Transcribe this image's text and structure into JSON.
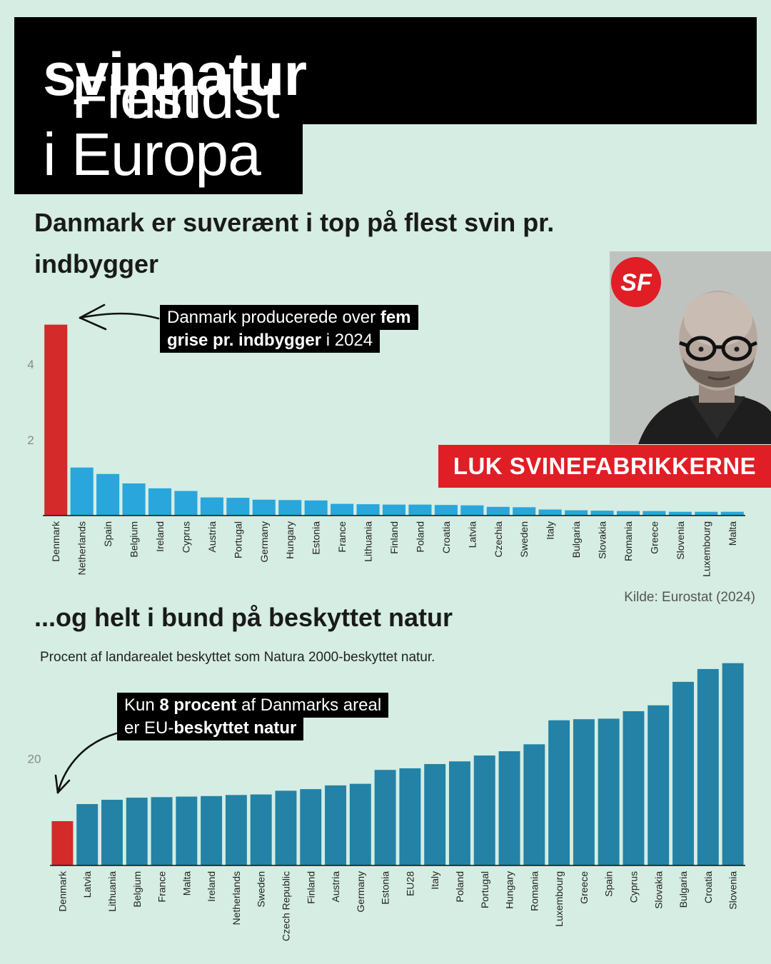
{
  "title": {
    "line1_part1": "Flest ",
    "line1_bold1": "svin",
    "line1_part2": " - mindst ",
    "line1_bold2": "natur",
    "line2": "i Europa"
  },
  "heading1": "Danmark er suverænt i top på flest svin pr. indbygger",
  "heading2": "...og helt i bund på beskyttet natur",
  "source": "Kilde: Eurostat (2024)",
  "annotation1": {
    "part1": "Danmark producerede over ",
    "bold1": "fem",
    "bold2": "grise pr. indbygger",
    "part2": " i 2024"
  },
  "annotation2": {
    "part1": "Kun ",
    "bold1": "8 procent",
    "part2": " af Danmarks areal",
    "part3": "er EU-",
    "bold2": "beskyttet natur"
  },
  "banner": "LUK SVINEFABRIKKERNE",
  "logo_text": "SF",
  "colors": {
    "highlight": "#d42a2a",
    "bars_top": "#29a6dc",
    "bars_bottom": "#2382a6",
    "background": "#d5ede3",
    "banner": "#e01e26"
  },
  "chart_data": [
    {
      "type": "bar",
      "title": "Danmark er suverænt i top på flest svin pr. indbygger",
      "categories": [
        "Denmark",
        "Netherlands",
        "Spain",
        "Belgium",
        "Ireland",
        "Cyprus",
        "Austria",
        "Portugal",
        "Germany",
        "Hungary",
        "Estonia",
        "France",
        "Lithuania",
        "Finland",
        "Poland",
        "Croatia",
        "Latvia",
        "Czechia",
        "Sweden",
        "Italy",
        "Bulgaria",
        "Slovakia",
        "Romania",
        "Greece",
        "Slovenia",
        "Luxembourg",
        "Malta"
      ],
      "values": [
        5.05,
        1.27,
        1.1,
        0.85,
        0.72,
        0.65,
        0.48,
        0.47,
        0.42,
        0.41,
        0.4,
        0.31,
        0.3,
        0.29,
        0.29,
        0.28,
        0.27,
        0.23,
        0.22,
        0.16,
        0.14,
        0.13,
        0.12,
        0.12,
        0.1,
        0.1,
        0.1
      ],
      "yticks": [
        2,
        4
      ],
      "ylim": [
        0,
        5.1
      ],
      "highlight": "Denmark"
    },
    {
      "type": "bar",
      "subtitle": "Procent af landarealet beskyttet som Natura 2000-beskyttet natur.",
      "categories": [
        "Denmark",
        "Latvia",
        "Lithuania",
        "Belgium",
        "France",
        "Malta",
        "Ireland",
        "Netherlands",
        "Sweden",
        "Czech Republic",
        "Finland",
        "Austria",
        "Germany",
        "Estonia",
        "EU28",
        "Italy",
        "Poland",
        "Portugal",
        "Hungary",
        "Romania",
        "Luxembourg",
        "Greece",
        "Spain",
        "Cyprus",
        "Slovakia",
        "Bulgaria",
        "Croatia",
        "Slovenia"
      ],
      "values": [
        8.3,
        11.5,
        12.3,
        12.7,
        12.8,
        12.9,
        13.0,
        13.2,
        13.3,
        14.0,
        14.3,
        15.0,
        15.3,
        17.9,
        18.2,
        19.0,
        19.5,
        20.6,
        21.4,
        22.7,
        27.2,
        27.4,
        27.5,
        28.9,
        30.0,
        34.4,
        36.8,
        37.9
      ],
      "yticks": [
        20
      ],
      "ylim": [
        0,
        40
      ],
      "highlight": "Denmark"
    }
  ]
}
